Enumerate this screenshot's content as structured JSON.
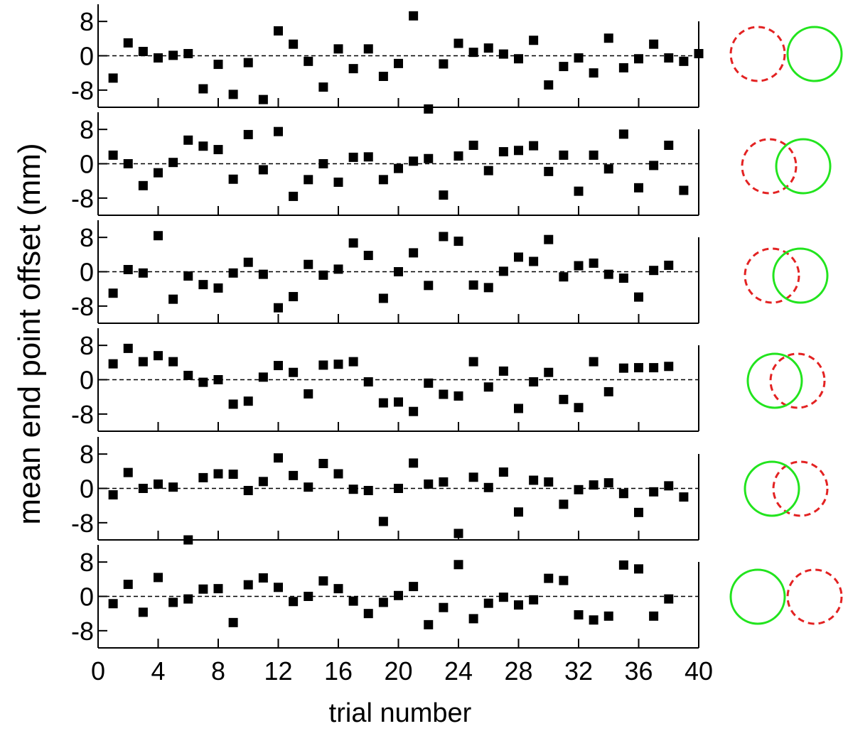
{
  "figure": {
    "ylabel": "mean end point offset (mm)",
    "xlabel": "trial number"
  },
  "chart_data": {
    "type": "scatter",
    "xlim": [
      0,
      40
    ],
    "ylim": [
      -12,
      12
    ],
    "x_ticks": [
      0,
      4,
      8,
      12,
      16,
      20,
      24,
      28,
      32,
      36,
      40
    ],
    "x_tick_labels": [
      "0",
      "4",
      "8",
      "12",
      "16",
      "20",
      "24",
      "28",
      "32",
      "36",
      "40"
    ],
    "y_ticks": [
      8,
      0,
      -8
    ],
    "y_tick_labels": [
      "8",
      "0",
      "-8"
    ],
    "reference_line": {
      "y": 0,
      "style": "dashed"
    },
    "marker": "square",
    "grid": false,
    "panels": [
      {
        "x": [
          1,
          2,
          3,
          4,
          5,
          6,
          7,
          8,
          9,
          10,
          11,
          12,
          13,
          14,
          15,
          16,
          17,
          18,
          19,
          20,
          21,
          22,
          23,
          24,
          25,
          26,
          27,
          28,
          29,
          30,
          31,
          32,
          33,
          34,
          35,
          36,
          37,
          38,
          39,
          40
        ],
        "y": [
          -5.2,
          3,
          1,
          -0.5,
          0.1,
          0.5,
          -7.7,
          -2,
          -9,
          -1.6,
          -10.2,
          5.8,
          2.7,
          -1.3,
          -7.3,
          1.6,
          -3,
          1.6,
          -4.8,
          -1.8,
          9.3,
          -12.4,
          -1.9,
          2.9,
          0.8,
          1.8,
          0.4,
          -0.7,
          3.6,
          -6.8,
          -2.5,
          -0.5,
          -4,
          4.1,
          -2.8,
          -0.7,
          2.7,
          -0.5,
          -1.3,
          0.5
        ]
      },
      {
        "x": [
          1,
          2,
          3,
          4,
          5,
          6,
          7,
          8,
          9,
          10,
          11,
          12,
          13,
          14,
          15,
          16,
          17,
          18,
          19,
          20,
          21,
          22,
          23,
          24,
          25,
          26,
          27,
          28,
          29,
          30,
          31,
          32,
          33,
          34,
          35,
          36,
          37,
          38,
          39
        ],
        "y": [
          2,
          0,
          -5.1,
          -2.1,
          0.3,
          5.5,
          4.1,
          3.3,
          -3.6,
          6.8,
          -1.4,
          7.5,
          -7.6,
          -3.7,
          0,
          -4.3,
          1.5,
          1.6,
          -3.7,
          -1.1,
          0.6,
          1.2,
          -7.3,
          1.8,
          4.3,
          -1.6,
          2.8,
          3.1,
          4.2,
          -1.8,
          2,
          -6.4,
          2,
          -1.2,
          6.9,
          -5.6,
          -0.4,
          4.3,
          -6.2
        ]
      },
      {
        "x": [
          1,
          2,
          3,
          4,
          5,
          6,
          7,
          8,
          9,
          10,
          11,
          12,
          13,
          14,
          15,
          16,
          17,
          18,
          19,
          20,
          21,
          22,
          23,
          24,
          25,
          26,
          27,
          28,
          29,
          30,
          31,
          32,
          33,
          34,
          35,
          36,
          37,
          38
        ],
        "y": [
          -5,
          0.5,
          -0.3,
          8.4,
          -6.4,
          -1,
          -3,
          -3.8,
          -0.3,
          2.2,
          -0.6,
          -8.4,
          -5.8,
          1.7,
          -0.8,
          0.6,
          6.7,
          3.8,
          -6.2,
          0,
          4.4,
          -3.2,
          8.2,
          7.1,
          -3.1,
          -3.7,
          0.1,
          3.4,
          2.4,
          7.5,
          -1.2,
          1.4,
          2,
          -0.6,
          -1.5,
          -5.9,
          0.3,
          1.5
        ]
      },
      {
        "x": [
          1,
          2,
          3,
          4,
          5,
          6,
          7,
          8,
          9,
          10,
          11,
          12,
          13,
          14,
          15,
          16,
          17,
          18,
          19,
          20,
          21,
          22,
          23,
          24,
          25,
          26,
          27,
          28,
          29,
          30,
          31,
          32,
          33,
          34,
          35,
          36,
          37,
          38
        ],
        "y": [
          3.7,
          7.3,
          4.2,
          5.6,
          4.2,
          1,
          -0.6,
          0,
          -5.7,
          -5,
          0.6,
          3.3,
          1.7,
          -3.3,
          3.4,
          3.6,
          4.2,
          -0.5,
          -5.4,
          -5.2,
          -7.4,
          -0.8,
          -3.4,
          -3.8,
          4.2,
          -1.7,
          2,
          -6.7,
          -0.5,
          1.7,
          -4.6,
          -6.5,
          4.2,
          -2.8,
          2.7,
          2.8,
          2.8,
          3.1
        ]
      },
      {
        "x": [
          1,
          2,
          3,
          4,
          5,
          6,
          7,
          8,
          9,
          10,
          11,
          12,
          13,
          14,
          15,
          16,
          17,
          18,
          19,
          20,
          21,
          22,
          23,
          24,
          25,
          26,
          27,
          28,
          29,
          30,
          31,
          32,
          33,
          34,
          35,
          36,
          37,
          38,
          39
        ],
        "y": [
          -1.5,
          3.7,
          0,
          1,
          0.3,
          -12,
          2.5,
          3.4,
          3.3,
          -0.5,
          1.6,
          7.1,
          3,
          0.3,
          5.8,
          3.4,
          -0.2,
          -0.5,
          -7.7,
          0,
          5.9,
          1,
          1.5,
          -10.5,
          2.6,
          0.2,
          3.8,
          -5.5,
          1.9,
          1.5,
          -3.7,
          -0.3,
          0.8,
          1.3,
          -1.2,
          -5.6,
          -0.8,
          0.6,
          -2
        ]
      },
      {
        "x": [
          1,
          2,
          3,
          4,
          5,
          6,
          7,
          8,
          9,
          10,
          11,
          12,
          13,
          14,
          15,
          16,
          17,
          18,
          19,
          20,
          21,
          22,
          23,
          24,
          25,
          26,
          27,
          28,
          29,
          30,
          31,
          32,
          33,
          34,
          35,
          36,
          37,
          38
        ],
        "y": [
          -1.7,
          2.8,
          -3.7,
          4.4,
          -1.4,
          -0.6,
          1.7,
          1.8,
          -6.1,
          2.7,
          4.3,
          2.1,
          -1.2,
          0,
          3.6,
          1.8,
          -1.1,
          -4,
          -1.4,
          0.2,
          2.3,
          -6.6,
          -2.6,
          7.4,
          -5.2,
          -1.6,
          -0.2,
          -2,
          -0.8,
          4.2,
          3.7,
          -4.3,
          -5.5,
          -4.6,
          7.3,
          6.4,
          -4.6,
          -0.6
        ]
      }
    ],
    "circle_pairs": [
      {
        "green_offset": 1.0,
        "red_offset": -1.0
      },
      {
        "green_offset": 0.6,
        "red_offset": -0.6
      },
      {
        "green_offset": 0.5,
        "red_offset": -0.5
      },
      {
        "green_offset": -0.4,
        "red_offset": 0.4
      },
      {
        "green_offset": -0.5,
        "red_offset": 0.5
      },
      {
        "green_offset": -1.0,
        "red_offset": 1.0
      }
    ],
    "colors": {
      "marker": "#000000",
      "green_circle": "#22e41e",
      "red_circle": "#e32222"
    }
  }
}
